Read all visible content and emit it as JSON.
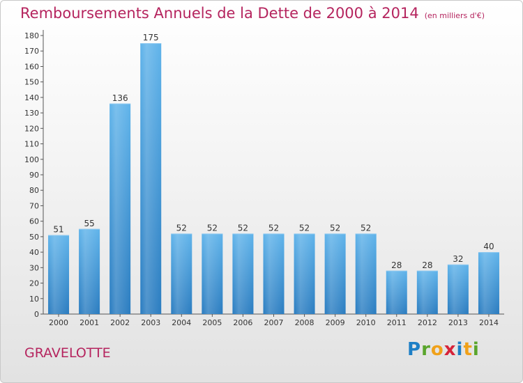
{
  "chart_data": {
    "type": "bar",
    "title": "Remboursements Annuels de la Dette de 2000 à 2014",
    "unit_label": "(en milliers d'€)",
    "categories": [
      "2000",
      "2001",
      "2002",
      "2003",
      "2004",
      "2005",
      "2006",
      "2007",
      "2008",
      "2009",
      "2010",
      "2011",
      "2012",
      "2013",
      "2014"
    ],
    "values": [
      51,
      55,
      136,
      175,
      52,
      52,
      52,
      52,
      52,
      52,
      52,
      28,
      28,
      32,
      40
    ],
    "yticks": [
      0,
      10,
      20,
      30,
      40,
      50,
      60,
      70,
      80,
      90,
      100,
      110,
      120,
      130,
      140,
      150,
      160,
      170,
      180
    ],
    "ylim": [
      0,
      180
    ],
    "grid": false,
    "bar_color": "#3f97d9",
    "title_color": "#b5245e"
  },
  "footer": {
    "commune": "GRAVELOTTE",
    "logo_text": "Proxiti"
  }
}
